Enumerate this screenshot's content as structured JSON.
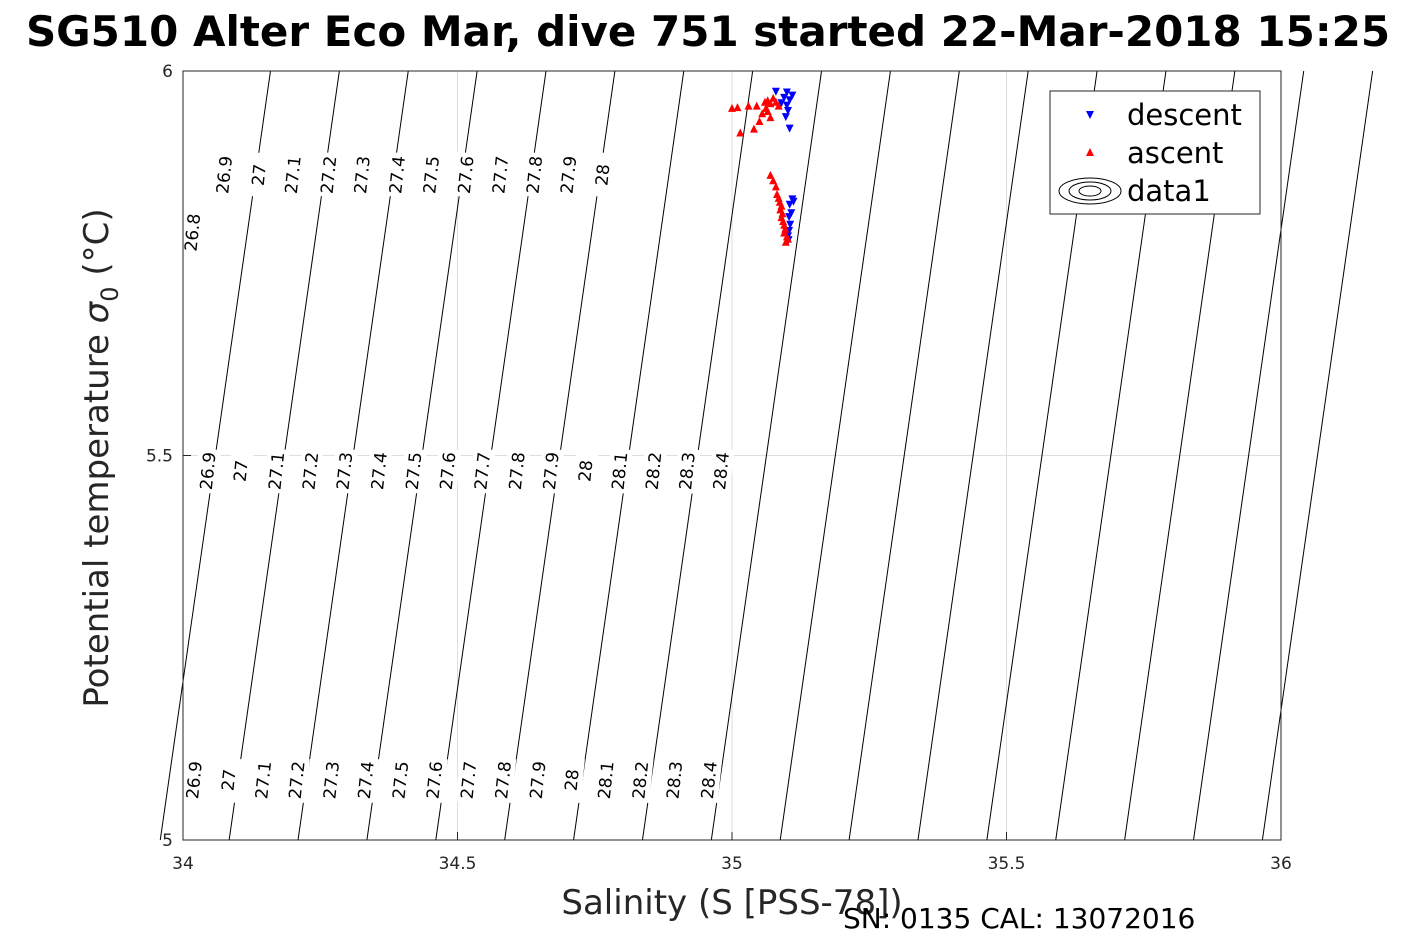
{
  "chart_data": {
    "type": "scatter",
    "title": "SG510 Alter Eco Mar, dive 751 started 22-Mar-2018 15:25",
    "xlabel": "Salinity (S [PSS-78])",
    "ylabel_main": "Potential temperature",
    "ylabel_symbol": "σ",
    "ylabel_sub": "0",
    "ylabel_unit": "(°C)",
    "xlim": [
      34,
      36
    ],
    "ylim": [
      5,
      6
    ],
    "xticks": [
      "34",
      "34.5",
      "35",
      "35.5",
      "36"
    ],
    "yticks": [
      "5",
      "5.5",
      "6"
    ],
    "grid": true,
    "legend_position": "top-right",
    "footer": "SN: 0135  CAL: 13072016",
    "series": [
      {
        "name": "descent",
        "marker": "triangle-down",
        "color": "#0000ff",
        "points": [
          [
            35.08,
            5.973
          ],
          [
            35.1,
            5.972
          ],
          [
            35.11,
            5.968
          ],
          [
            35.095,
            5.965
          ],
          [
            35.105,
            5.962
          ],
          [
            35.09,
            5.958
          ],
          [
            35.1,
            5.955
          ],
          [
            35.102,
            5.948
          ],
          [
            35.098,
            5.94
          ],
          [
            35.105,
            5.925
          ],
          [
            35.11,
            5.833
          ],
          [
            35.105,
            5.826
          ],
          [
            35.112,
            5.83
          ],
          [
            35.108,
            5.815
          ],
          [
            35.104,
            5.81
          ],
          [
            35.106,
            5.8
          ],
          [
            35.104,
            5.792
          ],
          [
            35.102,
            5.785
          ],
          [
            35.103,
            5.78
          ]
        ]
      },
      {
        "name": "ascent",
        "marker": "triangle-up",
        "color": "#ff0000",
        "points": [
          [
            35.0,
            5.952
          ],
          [
            35.01,
            5.953
          ],
          [
            35.03,
            5.955
          ],
          [
            35.045,
            5.955
          ],
          [
            35.055,
            5.945
          ],
          [
            35.06,
            5.96
          ],
          [
            35.065,
            5.962
          ],
          [
            35.07,
            5.958
          ],
          [
            35.075,
            5.965
          ],
          [
            35.08,
            5.96
          ],
          [
            35.062,
            5.952
          ],
          [
            35.05,
            5.935
          ],
          [
            35.015,
            5.92
          ],
          [
            35.04,
            5.925
          ],
          [
            35.07,
            5.94
          ],
          [
            35.065,
            5.948
          ],
          [
            35.085,
            5.955
          ],
          [
            35.07,
            5.865
          ],
          [
            35.075,
            5.858
          ],
          [
            35.08,
            5.85
          ],
          [
            35.082,
            5.84
          ],
          [
            35.085,
            5.835
          ],
          [
            35.087,
            5.83
          ],
          [
            35.09,
            5.825
          ],
          [
            35.088,
            5.82
          ],
          [
            35.092,
            5.815
          ],
          [
            35.09,
            5.81
          ],
          [
            35.093,
            5.805
          ],
          [
            35.095,
            5.8
          ],
          [
            35.097,
            5.795
          ],
          [
            35.095,
            5.79
          ],
          [
            35.1,
            5.785
          ],
          [
            35.102,
            5.782
          ],
          [
            35.098,
            5.778
          ]
        ]
      },
      {
        "name": "data1",
        "marker": "contour"
      }
    ],
    "isopycnals": [
      {
        "value": 26.8,
        "label": "26.8"
      },
      {
        "value": 26.9,
        "label": "26.9"
      },
      {
        "value": 27.0,
        "label": "27"
      },
      {
        "value": 27.1,
        "label": "27.1"
      },
      {
        "value": 27.2,
        "label": "27.2"
      },
      {
        "value": 27.3,
        "label": "27.3"
      },
      {
        "value": 27.4,
        "label": "27.4"
      },
      {
        "value": 27.5,
        "label": "27.5"
      },
      {
        "value": 27.6,
        "label": "27.6"
      },
      {
        "value": 27.7,
        "label": "27.7"
      },
      {
        "value": 27.8,
        "label": "27.8"
      },
      {
        "value": 27.9,
        "label": "27.9"
      },
      {
        "value": 28.0,
        "label": "28"
      },
      {
        "value": 28.1,
        "label": "28.1"
      },
      {
        "value": 28.2,
        "label": "28.2"
      },
      {
        "value": 28.3,
        "label": "28.3"
      },
      {
        "value": 28.4,
        "label": "28.4"
      }
    ],
    "contour_labels": [
      {
        "text": "26.8",
        "x": 34.017,
        "y": 5.79
      },
      {
        "text": "26.9",
        "x": 34.075,
        "y": 5.865
      },
      {
        "text": "27",
        "x": 34.138,
        "y": 5.865
      },
      {
        "text": "27.1",
        "x": 34.2,
        "y": 5.865
      },
      {
        "text": "27.2",
        "x": 34.265,
        "y": 5.865
      },
      {
        "text": "27.3",
        "x": 34.326,
        "y": 5.865
      },
      {
        "text": "27.4",
        "x": 34.39,
        "y": 5.865
      },
      {
        "text": "27.5",
        "x": 34.452,
        "y": 5.865
      },
      {
        "text": "27.6",
        "x": 34.515,
        "y": 5.865
      },
      {
        "text": "27.7",
        "x": 34.578,
        "y": 5.865
      },
      {
        "text": "27.8",
        "x": 34.64,
        "y": 5.865
      },
      {
        "text": "27.9",
        "x": 34.702,
        "y": 5.865
      },
      {
        "text": "28",
        "x": 34.764,
        "y": 5.865
      },
      {
        "text": "26.9",
        "x": 34.045,
        "y": 5.48
      },
      {
        "text": "27",
        "x": 34.105,
        "y": 5.48
      },
      {
        "text": "27.1",
        "x": 34.17,
        "y": 5.48
      },
      {
        "text": "27.2",
        "x": 34.232,
        "y": 5.48
      },
      {
        "text": "27.3",
        "x": 34.294,
        "y": 5.48
      },
      {
        "text": "27.4",
        "x": 34.357,
        "y": 5.48
      },
      {
        "text": "27.5",
        "x": 34.42,
        "y": 5.48
      },
      {
        "text": "27.6",
        "x": 34.482,
        "y": 5.48
      },
      {
        "text": "27.7",
        "x": 34.545,
        "y": 5.48
      },
      {
        "text": "27.8",
        "x": 34.608,
        "y": 5.48
      },
      {
        "text": "27.9",
        "x": 34.67,
        "y": 5.48
      },
      {
        "text": "28",
        "x": 34.733,
        "y": 5.48
      },
      {
        "text": "28.1",
        "x": 34.795,
        "y": 5.48
      },
      {
        "text": "28.2",
        "x": 34.857,
        "y": 5.48
      },
      {
        "text": "28.3",
        "x": 34.918,
        "y": 5.48
      },
      {
        "text": "28.4",
        "x": 34.98,
        "y": 5.48
      },
      {
        "text": "26.9",
        "x": 34.02,
        "y": 5.078
      },
      {
        "text": "27",
        "x": 34.083,
        "y": 5.078
      },
      {
        "text": "27.1",
        "x": 34.146,
        "y": 5.078
      },
      {
        "text": "27.2",
        "x": 34.207,
        "y": 5.078
      },
      {
        "text": "27.3",
        "x": 34.27,
        "y": 5.078
      },
      {
        "text": "27.4",
        "x": 34.333,
        "y": 5.078
      },
      {
        "text": "27.5",
        "x": 34.396,
        "y": 5.078
      },
      {
        "text": "27.6",
        "x": 34.458,
        "y": 5.078
      },
      {
        "text": "27.7",
        "x": 34.52,
        "y": 5.078
      },
      {
        "text": "27.8",
        "x": 34.583,
        "y": 5.078
      },
      {
        "text": "27.9",
        "x": 34.646,
        "y": 5.078
      },
      {
        "text": "28",
        "x": 34.708,
        "y": 5.078
      },
      {
        "text": "28.1",
        "x": 34.77,
        "y": 5.078
      },
      {
        "text": "28.2",
        "x": 34.833,
        "y": 5.078
      },
      {
        "text": "28.3",
        "x": 34.895,
        "y": 5.078
      },
      {
        "text": "28.4",
        "x": 34.958,
        "y": 5.078
      }
    ]
  }
}
